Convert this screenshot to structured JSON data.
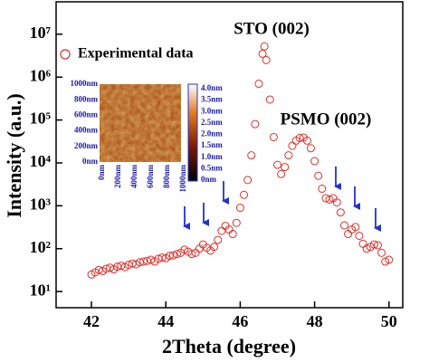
{
  "chart_data": {
    "type": "scatter",
    "x_label": "2Theta (degree)",
    "y_label": "Intensity (a.u.)",
    "annotations": [
      "STO (002)",
      "PSMO (002)"
    ],
    "xlim": [
      41.05,
      50.37
    ],
    "xticks": [
      42,
      44,
      46,
      48,
      50
    ],
    "ylim": [
      4.2,
      57000000
    ],
    "log_y": true,
    "yticks": [
      {
        "value": 10,
        "label": "10¹"
      },
      {
        "value": 100,
        "label": "10²"
      },
      {
        "value": 1000,
        "label": "10³"
      },
      {
        "value": 10000,
        "label": "10⁴"
      },
      {
        "value": 100000,
        "label": "10⁵"
      },
      {
        "value": 1000000,
        "label": "10⁶"
      },
      {
        "value": 10000000,
        "label": "10⁷"
      }
    ],
    "legend": "upper left",
    "series": [
      {
        "name": "Experimental data",
        "color": "#e0302a",
        "x": [
          42.0,
          42.1,
          42.2,
          42.3,
          42.4,
          42.5,
          42.6,
          42.7,
          42.8,
          42.9,
          43.0,
          43.1,
          43.2,
          43.3,
          43.4,
          43.5,
          43.6,
          43.7,
          43.8,
          43.9,
          44.0,
          44.1,
          44.2,
          44.3,
          44.4,
          44.5,
          44.6,
          44.7,
          44.8,
          44.9,
          45.0,
          45.1,
          45.2,
          45.3,
          45.4,
          45.5,
          45.6,
          45.7,
          45.8,
          45.9,
          46.0,
          46.1,
          46.2,
          46.3,
          46.4,
          46.5,
          46.6,
          46.65,
          46.7,
          46.8,
          46.9,
          47.0,
          47.1,
          47.2,
          47.3,
          47.4,
          47.5,
          47.6,
          47.7,
          47.8,
          47.9,
          48.0,
          48.1,
          48.2,
          48.3,
          48.4,
          48.5,
          48.6,
          48.7,
          48.8,
          48.9,
          49.0,
          49.1,
          49.2,
          49.3,
          49.4,
          49.5,
          49.6,
          49.7,
          49.8,
          49.9,
          50.0
        ],
        "values": [
          25,
          28,
          32,
          30,
          34,
          36,
          33,
          38,
          40,
          37,
          42,
          45,
          43,
          48,
          50,
          52,
          55,
          50,
          58,
          62,
          60,
          68,
          70,
          75,
          80,
          95,
          85,
          75,
          80,
          100,
          125,
          105,
          90,
          110,
          160,
          260,
          340,
          280,
          220,
          400,
          900,
          1800,
          4000,
          15000,
          80000,
          700000,
          3500000,
          5200000,
          2500000,
          300000,
          40000,
          9000,
          5500,
          8000,
          15000,
          25000,
          33000,
          38000,
          39000,
          33000,
          22000,
          11000,
          5000,
          2500,
          1500,
          1400,
          1500,
          1200,
          700,
          350,
          220,
          280,
          320,
          200,
          130,
          100,
          110,
          125,
          120,
          80,
          50,
          55
        ]
      }
    ]
  },
  "inset": {
    "y_labels": [
      "1000nm",
      "800nm",
      "600nm",
      "400nm",
      "200nm",
      "0nm"
    ],
    "x_labels": [
      "0nm",
      "200nm",
      "400nm",
      "600nm",
      "800nm",
      "1000nm"
    ],
    "colorbar_labels": [
      "4.0nm",
      "3.5nm",
      "3.0nm",
      "2.5nm",
      "2.0nm",
      "1.5nm",
      "1.0nm",
      "0.5nm",
      "0nm"
    ]
  }
}
